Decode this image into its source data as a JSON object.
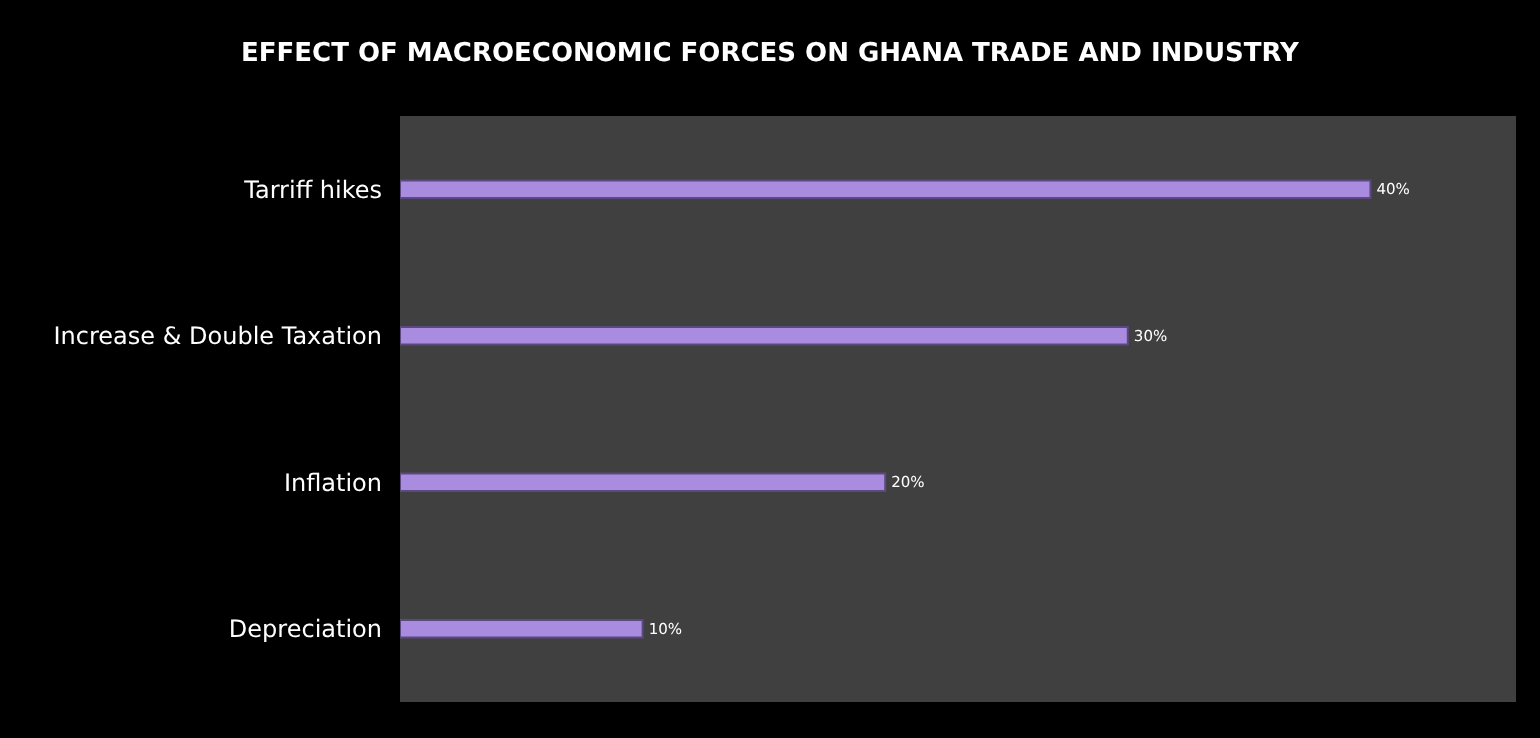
{
  "chart_data": {
    "type": "bar",
    "orientation": "horizontal",
    "title": "EFFECT OF MACROECONOMIC FORCES ON GHANA TRADE AND INDUSTRY",
    "categories": [
      "Tarriff hikes",
      "Increase & Double Taxation",
      "Inflation",
      "Depreciation"
    ],
    "values": [
      40,
      30,
      20,
      10
    ],
    "value_labels": [
      "40%",
      "30%",
      "20%",
      "10%"
    ],
    "color": "#a98be0",
    "xlim": [
      0,
      46
    ],
    "tick_labels": "y",
    "legend": false
  }
}
